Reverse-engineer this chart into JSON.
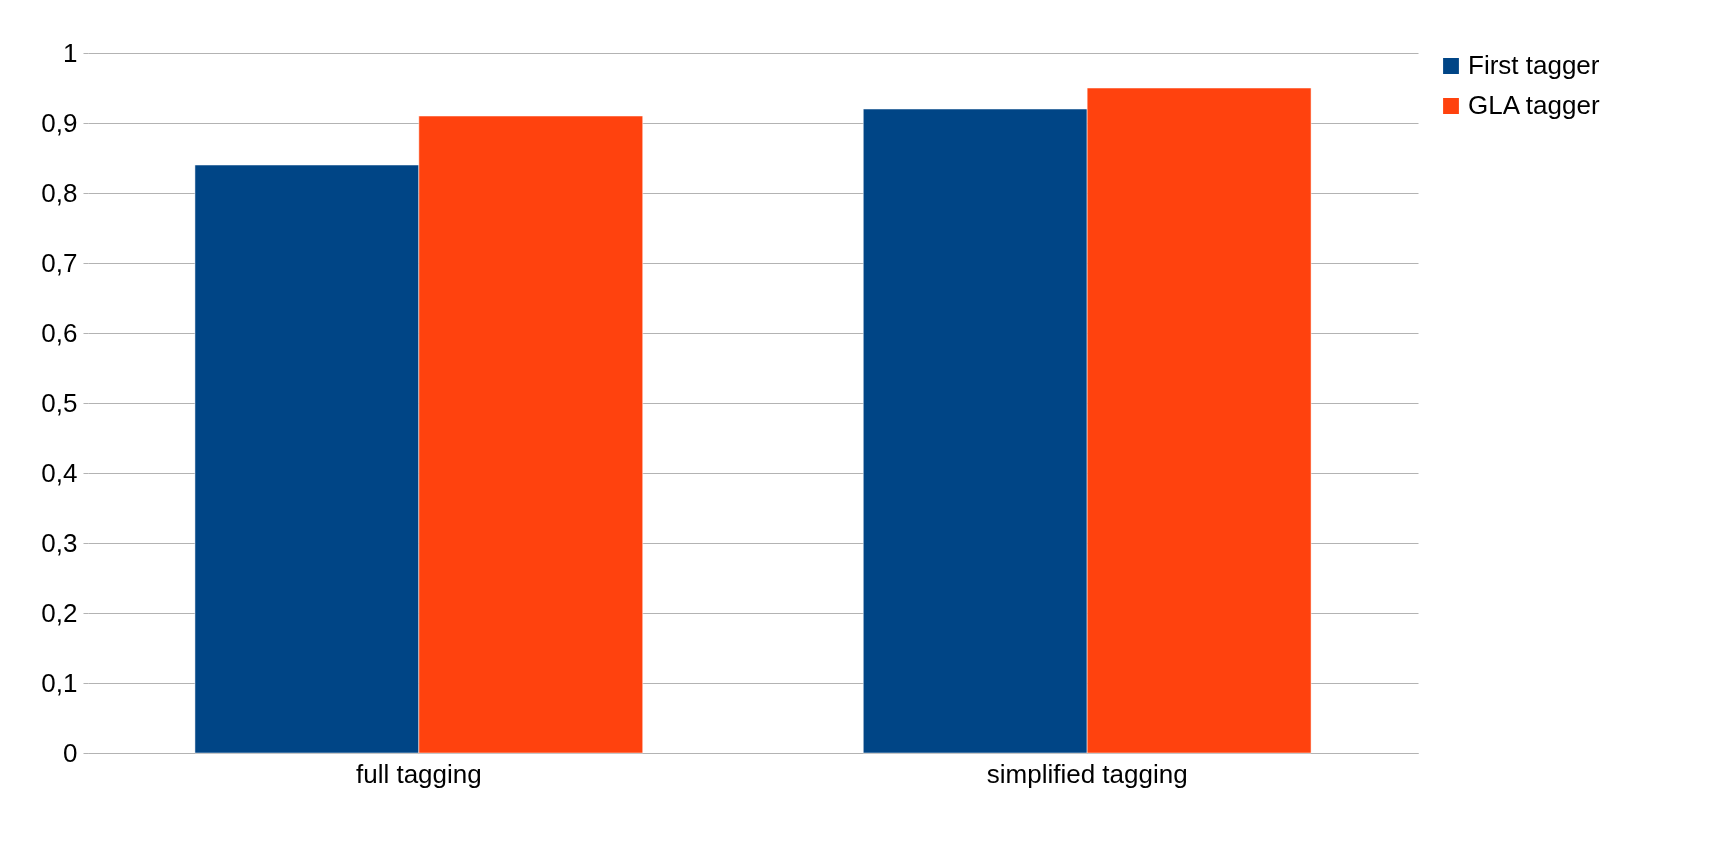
{
  "chart_data": {
    "type": "bar",
    "categories": [
      "full tagging",
      "simplified tagging"
    ],
    "series": [
      {
        "name": "First tagger",
        "color": "#004586",
        "values": [
          0.84,
          0.92
        ]
      },
      {
        "name": "GLA tagger",
        "color": "#ff420e",
        "values": [
          0.91,
          0.95
        ]
      }
    ],
    "ylim": [
      0,
      1
    ],
    "yticks": [
      0,
      {
        "value": 0.1,
        "label": "0,1"
      },
      {
        "value": 0.2,
        "label": "0,2"
      },
      {
        "value": 0.3,
        "label": "0,3"
      },
      {
        "value": 0.4,
        "label": "0,4"
      },
      {
        "value": 0.5,
        "label": "0,5"
      },
      {
        "value": 0.6,
        "label": "0,6"
      },
      {
        "value": 0.7,
        "label": "0,7"
      },
      {
        "value": 0.8,
        "label": "0,8"
      },
      {
        "value": 0.9,
        "label": "0,9"
      },
      1
    ],
    "grid": "y",
    "legend": "right"
  }
}
